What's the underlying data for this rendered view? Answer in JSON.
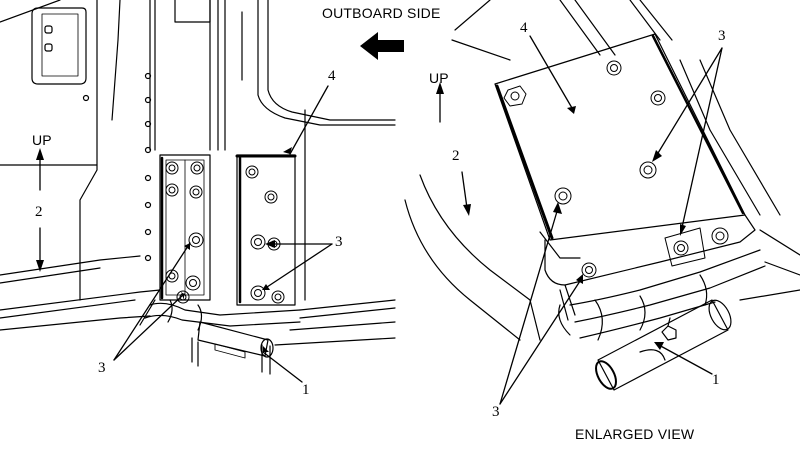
{
  "header": {
    "outboard_label": "OUTBOARD SIDE"
  },
  "left_view": {
    "up_label": "UP",
    "callouts": {
      "flow": "2",
      "plate": "4",
      "fasteners": "3",
      "fasteners_lower": "3",
      "clamp": "1"
    }
  },
  "right_view": {
    "up_label": "UP",
    "callouts": {
      "flow": "2",
      "plate": "4",
      "fasteners": "3",
      "fasteners_lower": "3",
      "clamp": "1"
    },
    "caption": "ENLARGED VIEW"
  },
  "colors": {
    "line": "#000000",
    "background": "#ffffff"
  },
  "icons": {
    "direction_arrow": "arrow-left-icon",
    "up_arrow": "double-arrow-icon"
  }
}
